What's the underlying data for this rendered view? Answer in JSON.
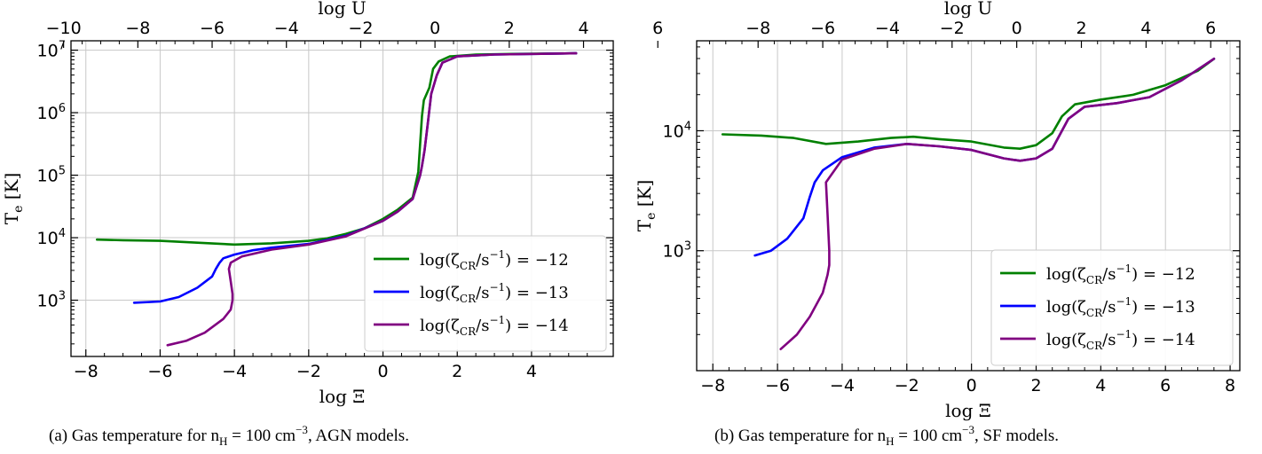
{
  "chart_data": [
    {
      "type": "line",
      "caption": "(a)  Gas temperature for n_H = 100 cm^-3, AGN models.",
      "xlabel": "log Ξ",
      "ylabel": "T_e [K]",
      "top_xlabel": "log U",
      "xlim": [
        -8.4,
        6.2
      ],
      "ylim_log10": [
        2.1,
        7.15
      ],
      "yscale": "log",
      "grid": true,
      "legend_position": "lower-right",
      "x_ticks": [
        -8,
        -6,
        -4,
        -2,
        0,
        2,
        4
      ],
      "x_tick_labels": [
        "−8",
        "−6",
        "−4",
        "−2",
        "0",
        "2",
        "4"
      ],
      "top_x_ticks": [
        -10,
        -8,
        -6,
        -4,
        -2,
        0,
        2,
        4,
        6
      ],
      "top_x_tick_labels": [
        "−10",
        "−8",
        "−6",
        "−4",
        "−2",
        "0",
        "2",
        "4",
        "6"
      ],
      "top_x_offset": 1.4,
      "y_ticks": [
        3,
        4,
        5,
        6,
        7
      ],
      "y_tick_labels": [
        "10^3",
        "10^4",
        "10^5",
        "10^6",
        "10^7"
      ],
      "series": [
        {
          "name": "log(ζ_CR/s^-1) = −12",
          "color": "#008000",
          "points": [
            [
              -7.7,
              3.97
            ],
            [
              -7,
              3.96
            ],
            [
              -6,
              3.95
            ],
            [
              -5,
              3.92
            ],
            [
              -4,
              3.89
            ],
            [
              -3,
              3.91
            ],
            [
              -2,
              3.95
            ],
            [
              -1.5,
              3.99
            ],
            [
              -1,
              4.06
            ],
            [
              -0.5,
              4.15
            ],
            [
              0,
              4.3
            ],
            [
              0.4,
              4.45
            ],
            [
              0.8,
              4.64
            ],
            [
              0.95,
              5.05
            ],
            [
              1.0,
              5.5
            ],
            [
              1.05,
              5.95
            ],
            [
              1.1,
              6.2
            ],
            [
              1.25,
              6.4
            ],
            [
              1.35,
              6.7
            ],
            [
              1.5,
              6.82
            ],
            [
              1.8,
              6.9
            ],
            [
              2.5,
              6.93
            ],
            [
              3.5,
              6.94
            ],
            [
              5.2,
              6.95
            ]
          ]
        },
        {
          "name": "log(ζ_CR/s^-1) = −13",
          "color": "#0000ff",
          "points": [
            [
              -6.7,
              2.96
            ],
            [
              -6,
              2.98
            ],
            [
              -5.5,
              3.05
            ],
            [
              -5,
              3.2
            ],
            [
              -4.6,
              3.38
            ],
            [
              -4.5,
              3.5
            ],
            [
              -4.4,
              3.6
            ],
            [
              -4.3,
              3.67
            ],
            [
              -4,
              3.73
            ],
            [
              -3.5,
              3.8
            ],
            [
              -3,
              3.84
            ],
            [
              -2,
              3.9
            ],
            [
              -1,
              4.03
            ],
            [
              0,
              4.27
            ],
            [
              0.4,
              4.42
            ],
            [
              0.8,
              4.62
            ],
            [
              1.0,
              5.0
            ],
            [
              1.05,
              5.15
            ],
            [
              1.12,
              5.4
            ],
            [
              1.2,
              5.8
            ],
            [
              1.3,
              6.3
            ],
            [
              1.45,
              6.6
            ],
            [
              1.6,
              6.8
            ],
            [
              2,
              6.9
            ],
            [
              3,
              6.93
            ],
            [
              5.2,
              6.95
            ]
          ]
        },
        {
          "name": "log(ζ_CR/s^-1) = −14",
          "color": "#800080",
          "points": [
            [
              -5.8,
              2.28
            ],
            [
              -5.3,
              2.35
            ],
            [
              -4.8,
              2.48
            ],
            [
              -4.3,
              2.7
            ],
            [
              -4.1,
              2.85
            ],
            [
              -4.05,
              3.0
            ],
            [
              -4.05,
              3.1
            ],
            [
              -4.1,
              3.3
            ],
            [
              -4.15,
              3.5
            ],
            [
              -4.1,
              3.6
            ],
            [
              -3.8,
              3.7
            ],
            [
              -3,
              3.81
            ],
            [
              -2,
              3.89
            ],
            [
              -1,
              4.02
            ],
            [
              0,
              4.27
            ],
            [
              0.4,
              4.42
            ],
            [
              0.8,
              4.62
            ],
            [
              1.0,
              5.0
            ],
            [
              1.05,
              5.15
            ],
            [
              1.12,
              5.4
            ],
            [
              1.2,
              5.8
            ],
            [
              1.3,
              6.3
            ],
            [
              1.45,
              6.6
            ],
            [
              1.6,
              6.8
            ],
            [
              2,
              6.9
            ],
            [
              3,
              6.93
            ],
            [
              5.2,
              6.95
            ]
          ]
        }
      ]
    },
    {
      "type": "line",
      "caption": "(b)  Gas temperature for n_H = 100 cm^-3, SF models.",
      "xlabel": "log Ξ",
      "ylabel": "T_e [K]",
      "top_xlabel": "log U",
      "xlim": [
        -8.5,
        8.3
      ],
      "ylim_log10": [
        2.0,
        4.75
      ],
      "yscale": "log",
      "grid": true,
      "legend_position": "lower-right",
      "x_ticks": [
        -8,
        -6,
        -4,
        -2,
        0,
        2,
        4,
        6,
        8
      ],
      "x_tick_labels": [
        "−8",
        "−6",
        "−4",
        "−2",
        "0",
        "2",
        "4",
        "6",
        "8"
      ],
      "top_x_ticks": [
        -8,
        -6,
        -4,
        -2,
        0,
        2,
        4,
        6
      ],
      "top_x_tick_labels": [
        "−8",
        "−6",
        "−4",
        "−2",
        "0",
        "2",
        "4",
        "6"
      ],
      "top_x_offset": 1.4,
      "y_ticks": [
        3,
        4
      ],
      "y_tick_labels": [
        "10^3",
        "10^4"
      ],
      "series": [
        {
          "name": "log(ζ_CR/s^-1) = −12",
          "color": "#008000",
          "points": [
            [
              -7.7,
              3.97
            ],
            [
              -6.5,
              3.96
            ],
            [
              -5.5,
              3.94
            ],
            [
              -4.5,
              3.89
            ],
            [
              -3.5,
              3.91
            ],
            [
              -2.5,
              3.94
            ],
            [
              -1.8,
              3.95
            ],
            [
              -1,
              3.93
            ],
            [
              0,
              3.91
            ],
            [
              1,
              3.86
            ],
            [
              1.5,
              3.85
            ],
            [
              2,
              3.88
            ],
            [
              2.5,
              3.98
            ],
            [
              2.8,
              4.12
            ],
            [
              3.2,
              4.22
            ],
            [
              4,
              4.26
            ],
            [
              5,
              4.3
            ],
            [
              6,
              4.38
            ],
            [
              7,
              4.5
            ],
            [
              7.5,
              4.6
            ]
          ]
        },
        {
          "name": "log(ζ_CR/s^-1) = −13",
          "color": "#0000ff",
          "points": [
            [
              -6.7,
              2.96
            ],
            [
              -6.2,
              3.0
            ],
            [
              -5.7,
              3.1
            ],
            [
              -5.2,
              3.27
            ],
            [
              -5.0,
              3.45
            ],
            [
              -4.85,
              3.57
            ],
            [
              -4.6,
              3.67
            ],
            [
              -4,
              3.78
            ],
            [
              -3,
              3.86
            ],
            [
              -2,
              3.89
            ],
            [
              -1,
              3.87
            ],
            [
              0,
              3.84
            ],
            [
              1,
              3.77
            ],
            [
              1.5,
              3.75
            ],
            [
              2,
              3.77
            ],
            [
              2.5,
              3.85
            ],
            [
              3,
              4.1
            ],
            [
              3.5,
              4.2
            ],
            [
              4.5,
              4.23
            ],
            [
              5.5,
              4.28
            ],
            [
              6.5,
              4.42
            ],
            [
              7.5,
              4.6
            ]
          ]
        },
        {
          "name": "log(ζ_CR/s^-1) = −14",
          "color": "#800080",
          "points": [
            [
              -5.9,
              2.18
            ],
            [
              -5.4,
              2.3
            ],
            [
              -5,
              2.45
            ],
            [
              -4.6,
              2.65
            ],
            [
              -4.45,
              2.8
            ],
            [
              -4.4,
              2.88
            ],
            [
              -4.4,
              3.0
            ],
            [
              -4.45,
              3.3
            ],
            [
              -4.5,
              3.57
            ],
            [
              -4,
              3.76
            ],
            [
              -3,
              3.85
            ],
            [
              -2,
              3.89
            ],
            [
              -1,
              3.87
            ],
            [
              0,
              3.84
            ],
            [
              1,
              3.77
            ],
            [
              1.5,
              3.75
            ],
            [
              2,
              3.77
            ],
            [
              2.5,
              3.85
            ],
            [
              3,
              4.1
            ],
            [
              3.5,
              4.2
            ],
            [
              4.5,
              4.23
            ],
            [
              5.5,
              4.28
            ],
            [
              6.5,
              4.42
            ],
            [
              7.5,
              4.6
            ]
          ]
        }
      ]
    }
  ]
}
